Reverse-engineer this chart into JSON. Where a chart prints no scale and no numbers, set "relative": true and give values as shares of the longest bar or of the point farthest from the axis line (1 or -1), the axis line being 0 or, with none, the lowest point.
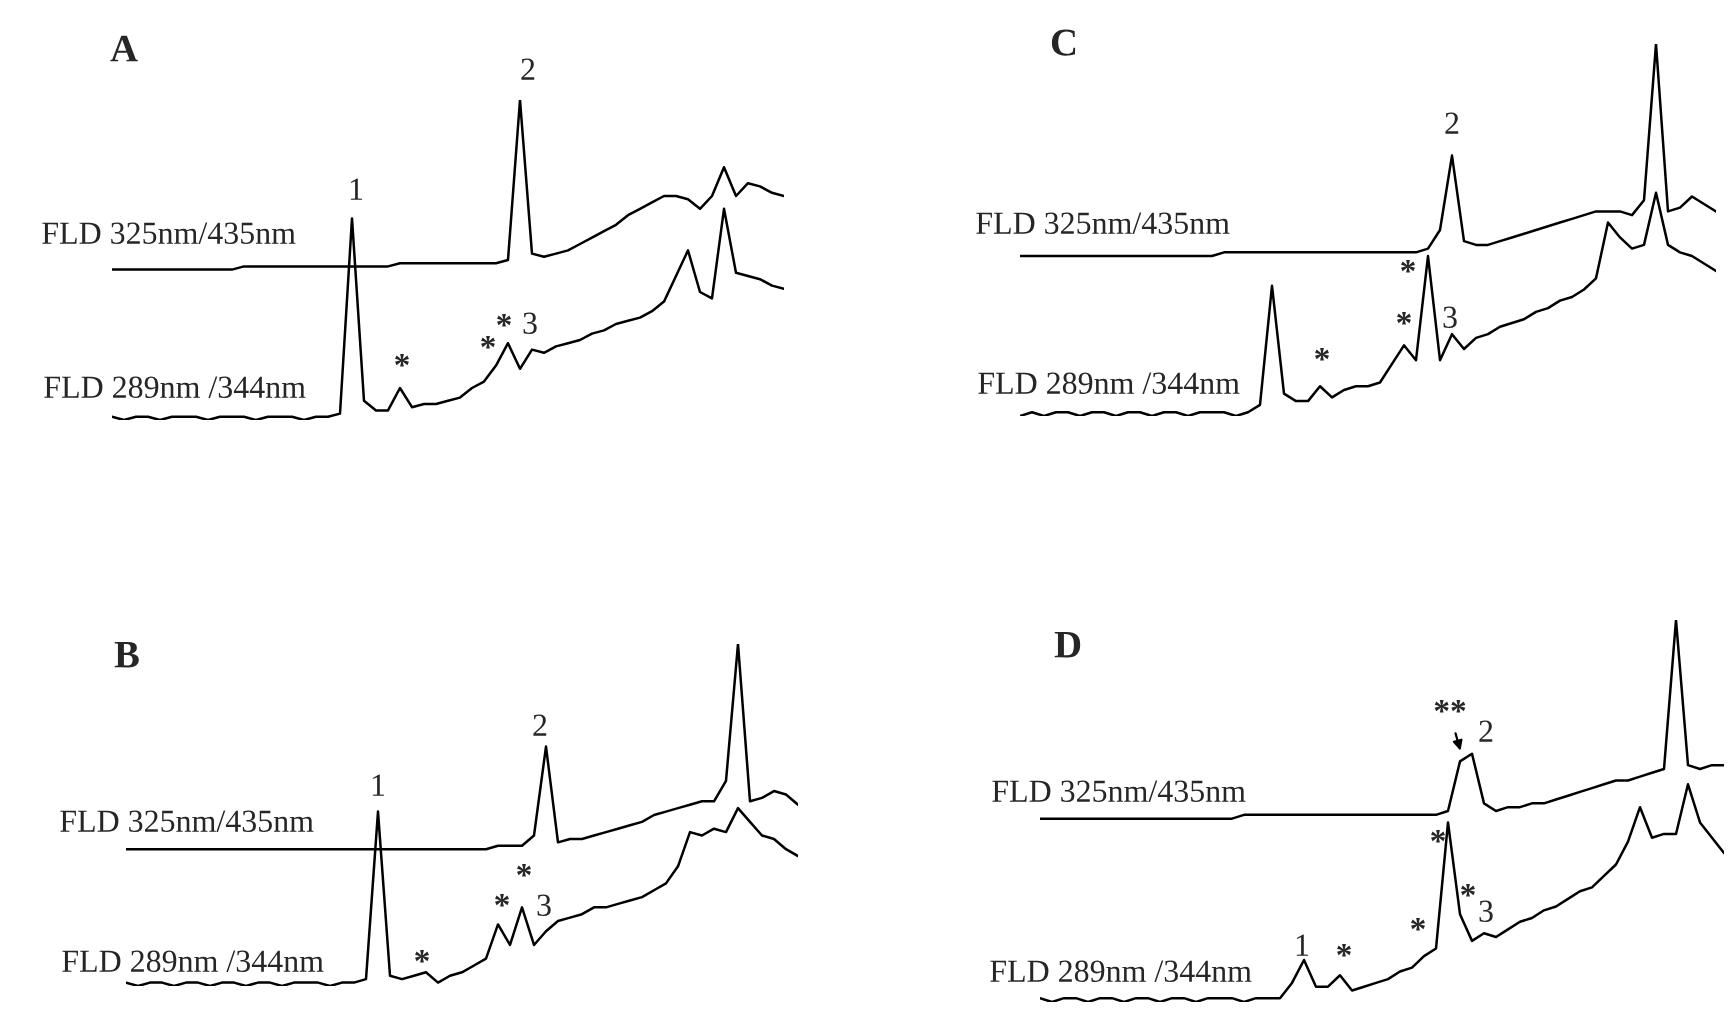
{
  "chart_data": [
    {
      "type": "line",
      "title": "A",
      "relative": true,
      "categories": [
        null,
        null,
        null,
        null,
        null,
        null,
        null,
        null,
        null,
        null,
        null,
        null,
        null,
        null,
        null,
        null,
        null,
        null,
        null,
        null,
        null,
        null,
        null,
        null,
        null,
        null,
        null,
        null,
        null,
        null,
        null,
        null,
        null,
        null,
        null,
        null,
        null,
        null,
        null,
        null,
        null,
        null,
        null,
        null,
        null,
        null,
        null,
        null,
        null,
        null,
        null,
        null,
        null,
        null,
        null,
        null,
        null
      ],
      "series": [
        {
          "name": "FLD 325nm/435nm",
          "color": "#000000",
          "values": [
            0.47,
            0.47,
            0.47,
            0.47,
            0.47,
            0.47,
            0.47,
            0.47,
            0.47,
            0.47,
            0.47,
            0.48,
            0.48,
            0.48,
            0.48,
            0.48,
            0.48,
            0.48,
            0.48,
            0.48,
            0.48,
            0.48,
            0.48,
            0.48,
            0.49,
            0.49,
            0.49,
            0.49,
            0.49,
            0.49,
            0.49,
            0.49,
            0.49,
            0.5,
            1.0,
            0.52,
            0.51,
            0.52,
            0.53,
            0.55,
            0.57,
            0.59,
            0.61,
            0.64,
            0.66,
            0.68,
            0.7,
            0.7,
            0.69,
            0.66,
            0.7,
            0.79,
            0.7,
            0.74,
            0.73,
            0.71,
            0.7
          ]
        },
        {
          "name": "FLD 289nm /344nm",
          "color": "#000000",
          "values": [
            0.01,
            0.0,
            0.01,
            0.01,
            0.0,
            0.01,
            0.01,
            0.01,
            0.0,
            0.01,
            0.01,
            0.01,
            0.0,
            0.01,
            0.01,
            0.01,
            0.0,
            0.01,
            0.01,
            0.02,
            0.63,
            0.06,
            0.03,
            0.03,
            0.1,
            0.04,
            0.05,
            0.05,
            0.06,
            0.07,
            0.1,
            0.12,
            0.17,
            0.24,
            0.16,
            0.22,
            0.21,
            0.23,
            0.24,
            0.25,
            0.27,
            0.28,
            0.3,
            0.31,
            0.32,
            0.34,
            0.37,
            0.45,
            0.53,
            0.4,
            0.38,
            0.66,
            0.46,
            0.45,
            0.44,
            0.42,
            0.41
          ]
        }
      ],
      "annotations": [
        "1",
        "2",
        "*",
        "*",
        "*",
        "3"
      ]
    },
    {
      "type": "line",
      "title": "C",
      "relative": true,
      "categories": [
        null,
        null,
        null,
        null,
        null,
        null,
        null,
        null,
        null,
        null,
        null,
        null,
        null,
        null,
        null,
        null,
        null,
        null,
        null,
        null,
        null,
        null,
        null,
        null,
        null,
        null,
        null,
        null,
        null,
        null,
        null,
        null,
        null,
        null,
        null,
        null,
        null,
        null,
        null,
        null,
        null,
        null,
        null,
        null,
        null,
        null,
        null,
        null,
        null,
        null,
        null,
        null,
        null,
        null,
        null,
        null,
        null,
        null,
        null
      ],
      "series": [
        {
          "name": "FLD 325nm/435nm",
          "color": "#000000",
          "values": [
            0.43,
            0.43,
            0.43,
            0.43,
            0.43,
            0.43,
            0.43,
            0.43,
            0.43,
            0.43,
            0.43,
            0.43,
            0.43,
            0.43,
            0.43,
            0.43,
            0.43,
            0.44,
            0.44,
            0.44,
            0.44,
            0.44,
            0.44,
            0.44,
            0.44,
            0.44,
            0.44,
            0.44,
            0.44,
            0.44,
            0.44,
            0.44,
            0.44,
            0.44,
            0.45,
            0.5,
            0.7,
            0.47,
            0.46,
            0.46,
            0.47,
            0.48,
            0.49,
            0.5,
            0.51,
            0.52,
            0.53,
            0.54,
            0.55,
            0.55,
            0.55,
            0.54,
            0.58,
            1.0,
            0.55,
            0.56,
            0.59,
            0.57,
            0.55
          ]
        },
        {
          "name": "FLD 289nm /344nm",
          "color": "#000000",
          "values": [
            0.0,
            0.01,
            0.0,
            0.01,
            0.01,
            0.0,
            0.01,
            0.01,
            0.0,
            0.01,
            0.01,
            0.0,
            0.01,
            0.01,
            0.0,
            0.01,
            0.01,
            0.01,
            0.0,
            0.01,
            0.03,
            0.35,
            0.06,
            0.04,
            0.04,
            0.08,
            0.05,
            0.07,
            0.08,
            0.08,
            0.09,
            0.14,
            0.19,
            0.15,
            0.43,
            0.15,
            0.22,
            0.18,
            0.21,
            0.22,
            0.24,
            0.25,
            0.26,
            0.28,
            0.29,
            0.31,
            0.32,
            0.34,
            0.37,
            0.52,
            0.48,
            0.45,
            0.46,
            0.6,
            0.46,
            0.44,
            0.43,
            0.41,
            0.39
          ]
        }
      ],
      "annotations": [
        "2",
        "*",
        "*",
        "*",
        "3"
      ]
    },
    {
      "type": "line",
      "title": "B",
      "relative": true,
      "categories": [
        null,
        null,
        null,
        null,
        null,
        null,
        null,
        null,
        null,
        null,
        null,
        null,
        null,
        null,
        null,
        null,
        null,
        null,
        null,
        null,
        null,
        null,
        null,
        null,
        null,
        null,
        null,
        null,
        null,
        null,
        null,
        null,
        null,
        null,
        null,
        null,
        null,
        null,
        null,
        null,
        null,
        null,
        null,
        null,
        null,
        null,
        null,
        null,
        null,
        null,
        null,
        null,
        null,
        null,
        null,
        null,
        null
      ],
      "series": [
        {
          "name": "FLD 325nm/435nm",
          "color": "#000000",
          "values": [
            0.4,
            0.4,
            0.4,
            0.4,
            0.4,
            0.4,
            0.4,
            0.4,
            0.4,
            0.4,
            0.4,
            0.4,
            0.4,
            0.4,
            0.4,
            0.4,
            0.4,
            0.4,
            0.4,
            0.4,
            0.4,
            0.4,
            0.4,
            0.4,
            0.4,
            0.4,
            0.4,
            0.4,
            0.4,
            0.4,
            0.4,
            0.41,
            0.41,
            0.41,
            0.44,
            0.7,
            0.42,
            0.43,
            0.43,
            0.44,
            0.45,
            0.46,
            0.47,
            0.48,
            0.5,
            0.51,
            0.52,
            0.53,
            0.54,
            0.54,
            0.6,
            1.0,
            0.54,
            0.55,
            0.57,
            0.56,
            0.53
          ]
        },
        {
          "name": "FLD 289nm /344nm",
          "color": "#000000",
          "values": [
            0.01,
            0.0,
            0.01,
            0.01,
            0.0,
            0.01,
            0.01,
            0.0,
            0.01,
            0.01,
            0.0,
            0.01,
            0.01,
            0.0,
            0.01,
            0.01,
            0.01,
            0.0,
            0.01,
            0.01,
            0.02,
            0.51,
            0.03,
            0.02,
            0.03,
            0.04,
            0.01,
            0.03,
            0.04,
            0.06,
            0.08,
            0.18,
            0.12,
            0.23,
            0.12,
            0.16,
            0.19,
            0.2,
            0.21,
            0.23,
            0.23,
            0.24,
            0.25,
            0.26,
            0.28,
            0.3,
            0.35,
            0.45,
            0.44,
            0.46,
            0.45,
            0.52,
            0.48,
            0.44,
            0.43,
            0.4,
            0.38
          ]
        }
      ],
      "annotations": [
        "1",
        "2",
        "*",
        "*",
        "*",
        "3"
      ]
    },
    {
      "type": "line",
      "title": "D",
      "relative": true,
      "categories": [
        null,
        null,
        null,
        null,
        null,
        null,
        null,
        null,
        null,
        null,
        null,
        null,
        null,
        null,
        null,
        null,
        null,
        null,
        null,
        null,
        null,
        null,
        null,
        null,
        null,
        null,
        null,
        null,
        null,
        null,
        null,
        null,
        null,
        null,
        null,
        null,
        null,
        null,
        null,
        null,
        null,
        null,
        null,
        null,
        null,
        null,
        null,
        null,
        null,
        null,
        null,
        null,
        null,
        null,
        null,
        null,
        null,
        null
      ],
      "series": [
        {
          "name": "FLD 325nm/435nm",
          "color": "#000000",
          "values": [
            0.48,
            0.48,
            0.48,
            0.48,
            0.48,
            0.48,
            0.48,
            0.48,
            0.48,
            0.48,
            0.48,
            0.48,
            0.48,
            0.48,
            0.48,
            0.48,
            0.48,
            0.49,
            0.49,
            0.49,
            0.49,
            0.49,
            0.49,
            0.49,
            0.49,
            0.49,
            0.49,
            0.49,
            0.49,
            0.49,
            0.49,
            0.49,
            0.49,
            0.49,
            0.5,
            0.63,
            0.65,
            0.52,
            0.5,
            0.51,
            0.51,
            0.52,
            0.52,
            0.53,
            0.54,
            0.55,
            0.56,
            0.57,
            0.58,
            0.58,
            0.59,
            0.6,
            0.61,
            1.0,
            0.62,
            0.61,
            0.62,
            0.62
          ]
        },
        {
          "name": "FLD 289nm /344nm",
          "color": "#000000",
          "values": [
            0.01,
            0.0,
            0.01,
            0.01,
            0.0,
            0.01,
            0.01,
            0.0,
            0.01,
            0.01,
            0.0,
            0.01,
            0.01,
            0.0,
            0.01,
            0.01,
            0.01,
            0.0,
            0.01,
            0.01,
            0.01,
            0.05,
            0.11,
            0.04,
            0.04,
            0.07,
            0.03,
            0.04,
            0.05,
            0.06,
            0.08,
            0.09,
            0.12,
            0.14,
            0.47,
            0.23,
            0.16,
            0.18,
            0.17,
            0.19,
            0.21,
            0.22,
            0.24,
            0.25,
            0.27,
            0.29,
            0.3,
            0.33,
            0.36,
            0.42,
            0.51,
            0.43,
            0.44,
            0.44,
            0.57,
            0.47,
            0.43,
            0.39
          ]
        }
      ],
      "annotations": [
        "**",
        "2",
        "*",
        "*",
        "3",
        "*",
        "1",
        "*"
      ]
    }
  ]
}
